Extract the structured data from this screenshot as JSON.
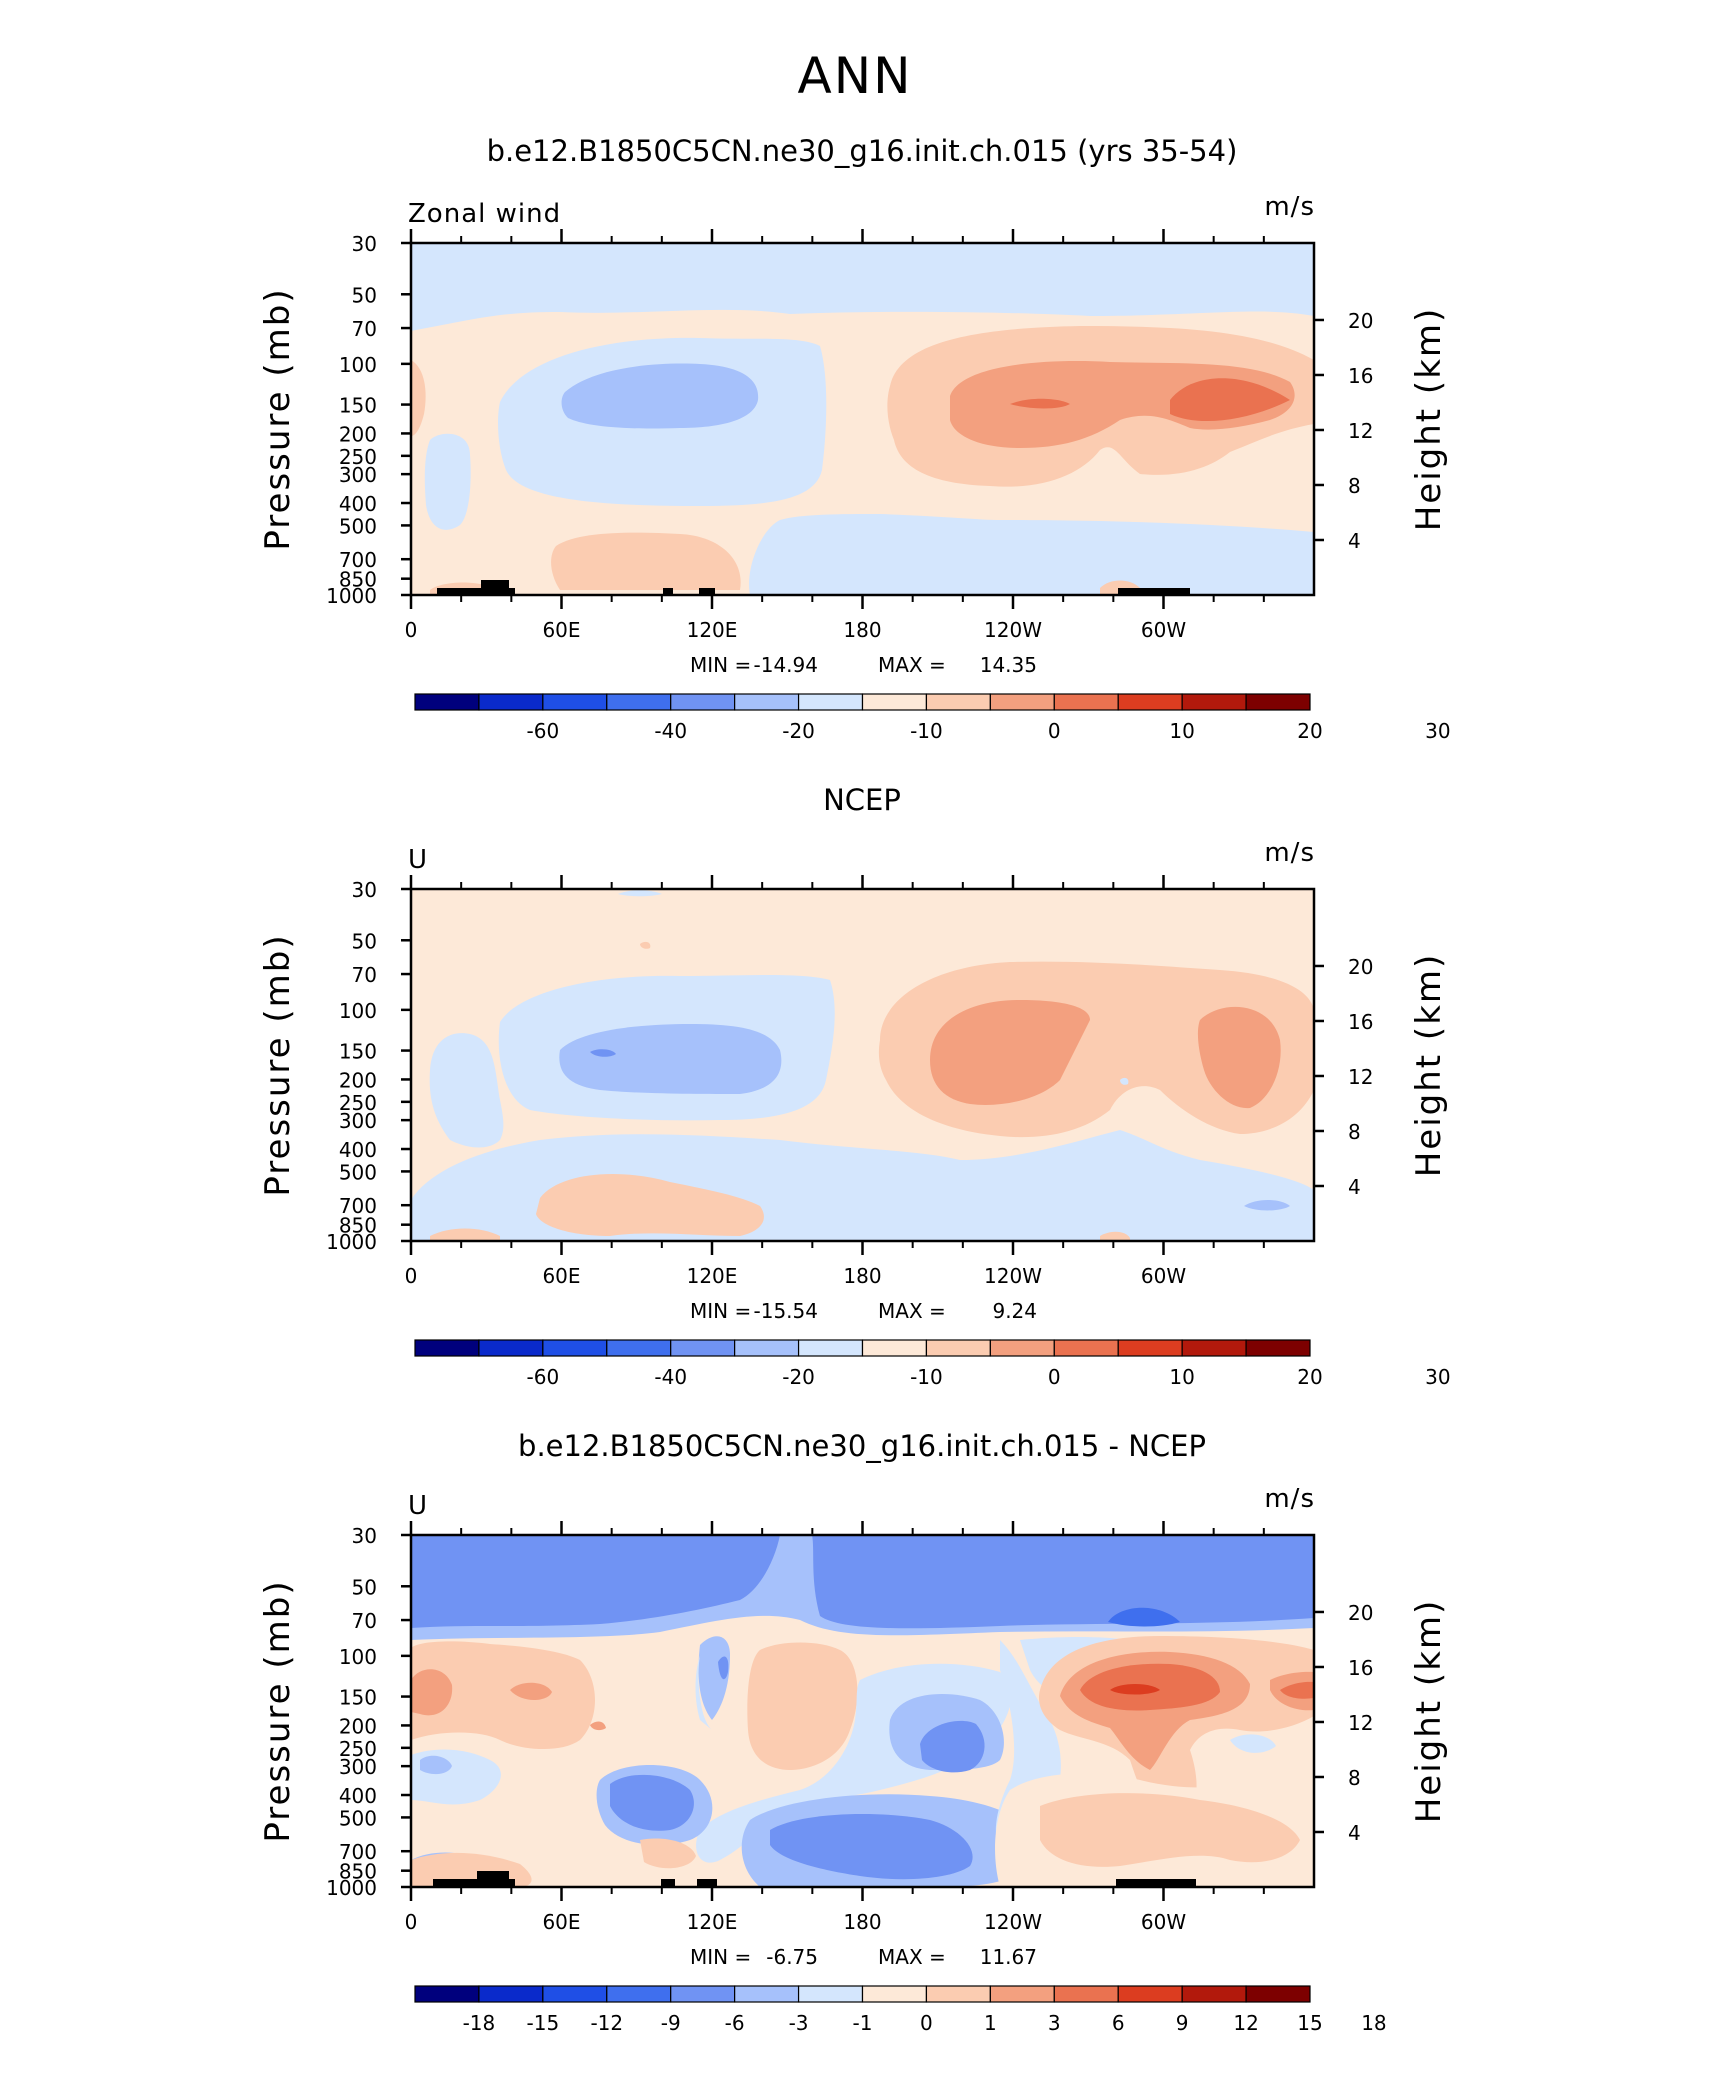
{
  "figure": {
    "title": "ANN",
    "colors": {
      "main": [
        "#00007d",
        "#0a2acb",
        "#1f4fe6",
        "#3f6fee",
        "#7093f3",
        "#a6c1fb",
        "#d4e6fd",
        "#fde9d8",
        "#fbccb1",
        "#f3a07f",
        "#ea7250",
        "#dc3d20",
        "#b2190c",
        "#7d0000"
      ]
    }
  },
  "chart_data": [
    {
      "type": "heatmap",
      "title": "b.e12.B1850C5CN.ne30_g16.init.ch.015 (yrs 35-54)",
      "left_label": "Zonal wind",
      "units": "m/s",
      "ylabel": "Pressure (mb)",
      "y2label": "Height (km)",
      "yticks": [
        "30",
        "50",
        "70",
        "100",
        "150",
        "200",
        "250",
        "300",
        "400",
        "500",
        "700",
        "850",
        "1000"
      ],
      "y2ticks": [
        "20",
        "16",
        "12",
        "8",
        "4"
      ],
      "xlim": [
        0,
        360
      ],
      "xticks": [
        "0",
        "60E",
        "120E",
        "180",
        "120W",
        "60W"
      ],
      "min_label": "MIN =",
      "min_value": "-14.94",
      "max_label": "MAX =",
      "max_value": "14.35",
      "colorbar_ticks": [
        "-60",
        "-40",
        "-20",
        "-10",
        "0",
        "10",
        "20",
        "30"
      ]
    },
    {
      "type": "heatmap",
      "title": "NCEP",
      "left_label": "U",
      "units": "m/s",
      "ylabel": "Pressure (mb)",
      "y2label": "Height (km)",
      "yticks": [
        "30",
        "50",
        "70",
        "100",
        "150",
        "200",
        "250",
        "300",
        "400",
        "500",
        "700",
        "850",
        "1000"
      ],
      "y2ticks": [
        "20",
        "16",
        "12",
        "8",
        "4"
      ],
      "xlim": [
        0,
        360
      ],
      "xticks": [
        "0",
        "60E",
        "120E",
        "180",
        "120W",
        "60W"
      ],
      "min_label": "MIN =",
      "min_value": "-15.54",
      "max_label": "MAX =",
      "max_value": "9.24",
      "colorbar_ticks": [
        "-60",
        "-40",
        "-20",
        "-10",
        "0",
        "10",
        "20",
        "30"
      ]
    },
    {
      "type": "heatmap",
      "title": "b.e12.B1850C5CN.ne30_g16.init.ch.015 - NCEP",
      "left_label": "U",
      "units": "m/s",
      "ylabel": "Pressure (mb)",
      "y2label": "Height (km)",
      "yticks": [
        "30",
        "50",
        "70",
        "100",
        "150",
        "200",
        "250",
        "300",
        "400",
        "500",
        "700",
        "850",
        "1000"
      ],
      "y2ticks": [
        "20",
        "16",
        "12",
        "8",
        "4"
      ],
      "xlim": [
        0,
        360
      ],
      "xticks": [
        "0",
        "60E",
        "120E",
        "180",
        "120W",
        "60W"
      ],
      "min_label": "MIN =",
      "min_value": "-6.75",
      "max_label": "MAX =",
      "max_value": "11.67",
      "colorbar_ticks": [
        "-18",
        "-15",
        "-12",
        "-9",
        "-6",
        "-3",
        "-1",
        "0",
        "1",
        "3",
        "6",
        "9",
        "12",
        "15",
        "18"
      ]
    }
  ]
}
